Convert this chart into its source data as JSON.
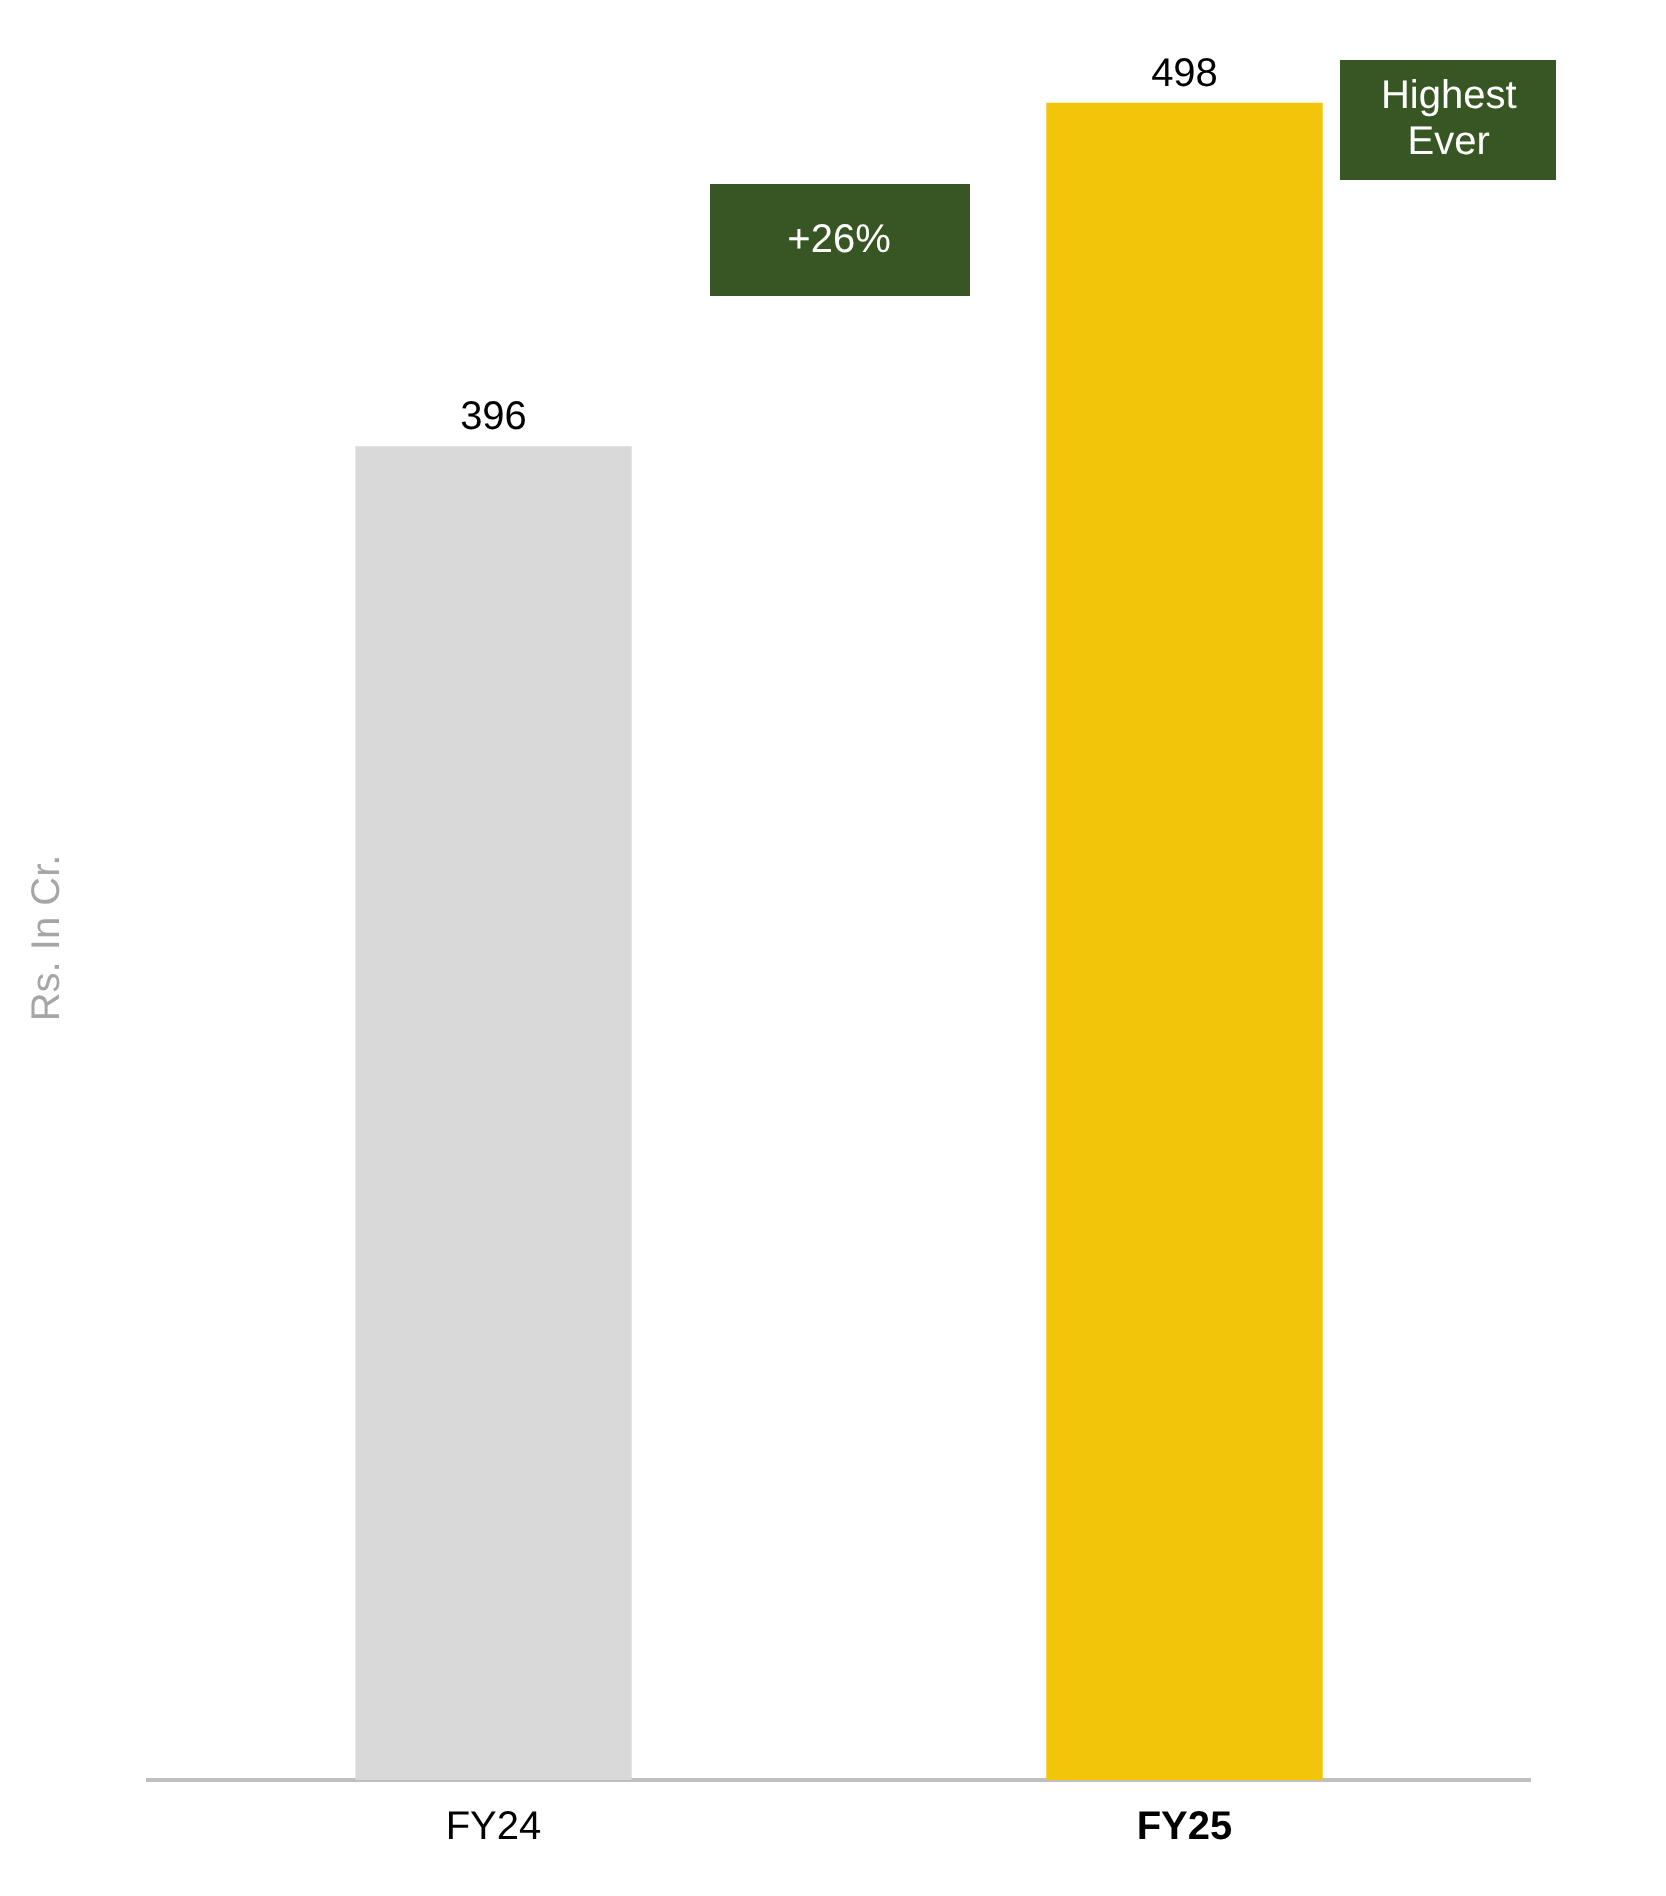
{
  "chart_data": {
    "type": "bar",
    "ylabel": "Rs. In Cr.",
    "categories": [
      "FY24",
      "FY25"
    ],
    "values": [
      396,
      498
    ],
    "colors": [
      "#d9d9d9",
      "#f2c40a"
    ],
    "data_labels": true,
    "grid": false,
    "legend": false,
    "tick_labels": "x",
    "annotations": [
      "+26%",
      "Highest Ever"
    ]
  }
}
